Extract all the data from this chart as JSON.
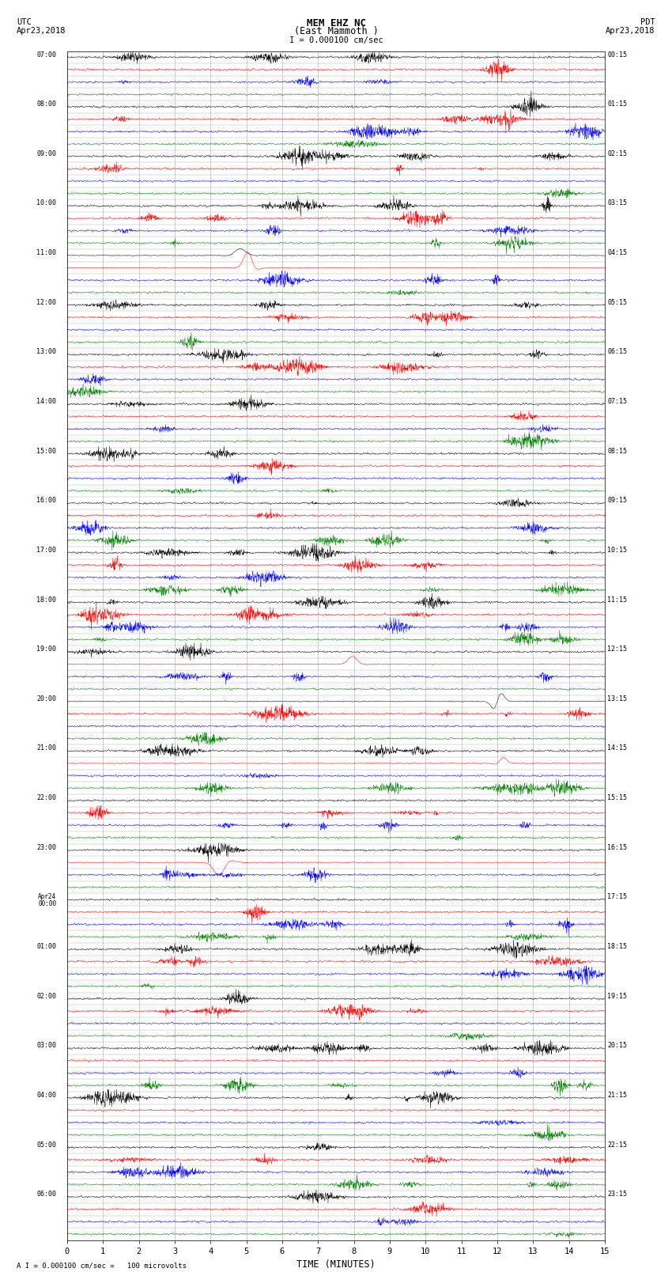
{
  "title_line1": "MEM EHZ NC",
  "title_line2": "(East Mammoth )",
  "scale_label": "I = 0.000100 cm/sec",
  "left_header_line1": "UTC",
  "left_header_line2": "Apr23,2018",
  "right_header_line1": "PDT",
  "right_header_line2": "Apr23,2018",
  "bottom_label": "TIME (MINUTES)",
  "bottom_note": "A I = 0.000100 cm/sec =   100 microvolts",
  "utc_labels": [
    "07:00",
    "08:00",
    "09:00",
    "10:00",
    "11:00",
    "12:00",
    "13:00",
    "14:00",
    "15:00",
    "16:00",
    "17:00",
    "18:00",
    "19:00",
    "20:00",
    "21:00",
    "22:00",
    "23:00",
    "Apr24\n00:00",
    "01:00",
    "02:00",
    "03:00",
    "04:00",
    "05:00",
    "06:00"
  ],
  "pdt_labels": [
    "00:15",
    "01:15",
    "02:15",
    "03:15",
    "04:15",
    "05:15",
    "06:15",
    "07:15",
    "08:15",
    "09:15",
    "10:15",
    "11:15",
    "12:15",
    "13:15",
    "14:15",
    "15:15",
    "16:15",
    "17:15",
    "18:15",
    "19:15",
    "20:15",
    "21:15",
    "22:15",
    "23:15"
  ],
  "n_hour_blocks": 24,
  "rows_per_block": 4,
  "colors": [
    "black",
    "red",
    "blue",
    "green"
  ],
  "fig_width": 8.5,
  "fig_height": 16.13,
  "bg_color": "white",
  "grid_color": "#aaaaaa",
  "text_color": "black",
  "font_family": "monospace",
  "base_noise_amp": 0.06,
  "trace_linewidth": 0.35
}
